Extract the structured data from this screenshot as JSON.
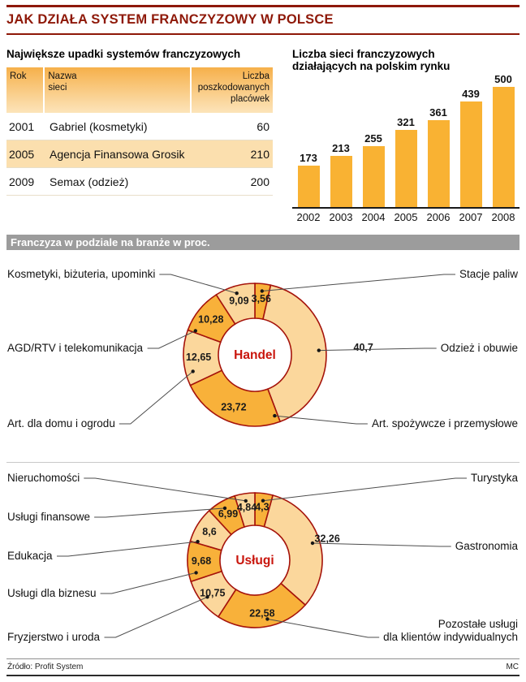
{
  "header": {
    "title": "JAK DZIAŁA SYSTEM FRANCZYZOWY W POLSCE"
  },
  "colors": {
    "accent": "#8e1808",
    "bar": "#f9b233",
    "donut_dark": "#f8b13a",
    "donut_light": "#fbd79c",
    "donut_stroke": "#a5130b",
    "highlight_row": "#fbdfae",
    "center_label": "#c9150c",
    "band_bg": "#9c9c9c"
  },
  "failures_table": {
    "title": "Największe upadki systemów franczyzowych",
    "columns": [
      "Rok",
      "Nazwa sieci",
      "Liczba poszkodowanych placówek"
    ],
    "rows": [
      {
        "rok": "2001",
        "nazwa": "Gabriel (kosmetyki)",
        "liczba": "60"
      },
      {
        "rok": "2005",
        "nazwa": "Agencja Finansowa Grosik",
        "liczba": "210"
      },
      {
        "rok": "2009",
        "nazwa": "Semax (odzież)",
        "liczba": "200"
      }
    ]
  },
  "section_bar": {
    "title": "Franczyza w podziale na branże w proc."
  },
  "footer": {
    "source": "Źródło: Profit System",
    "credit": "MC"
  },
  "chart_data": [
    {
      "type": "bar",
      "title": "Liczba sieci franczyzowych działających na polskim rynku",
      "categories": [
        "2002",
        "2003",
        "2004",
        "2005",
        "2006",
        "2007",
        "2008"
      ],
      "values": [
        173,
        213,
        255,
        321,
        361,
        439,
        500
      ],
      "ylim": [
        0,
        500
      ],
      "grid": false,
      "legend": "none"
    },
    {
      "type": "pie",
      "variant": "donut",
      "center_label": "Handel",
      "segments": [
        {
          "label": "Stacje paliw",
          "value": 3.56,
          "value_label": "3,56",
          "side": "right",
          "label_y": 34
        },
        {
          "label": "Odzież i obuwie",
          "value": 40.7,
          "value_label": "40,7",
          "side": "right",
          "label_y": 125,
          "value_r": 134
        },
        {
          "label": "Art. spożywcze i przemysłowe",
          "value": 23.72,
          "value_label": "23,72",
          "side": "right",
          "label_y": 218,
          "dot_angle": 162
        },
        {
          "label": "Art. dla domu i ogrodu",
          "value": 12.65,
          "value_label": "12,65",
          "side": "left",
          "label_y": 218,
          "dot_angle": 255
        },
        {
          "label": "AGD/RTV i telekomunikacja",
          "value": 10.28,
          "value_label": "10,28",
          "side": "left",
          "label_y": 125,
          "dot_angle": 292
        },
        {
          "label": "Kosmetyki, biżuteria, upominki",
          "value": 9.09,
          "value_label": "9,09",
          "side": "left",
          "label_y": 34
        }
      ]
    },
    {
      "type": "pie",
      "variant": "donut",
      "center_label": "Usługi",
      "segments": [
        {
          "label": "Turystyka",
          "value": 4.3,
          "value_label": "4,3",
          "side": "right",
          "label_y": 22
        },
        {
          "label": "Gastronomia",
          "value": 32.26,
          "value_label": "32,26",
          "side": "right",
          "label_y": 106,
          "value_r": 93
        },
        {
          "label": "Pozostałe usługi",
          "label2": "dla klientów indywidualnych",
          "value": 22.58,
          "value_label": "22,58",
          "side": "right",
          "label_y": 202,
          "dot_angle": 168
        },
        {
          "label": "Fryzjerstwo i uroda",
          "value": 10.75,
          "value_label": "10,75",
          "side": "left",
          "label_y": 218
        },
        {
          "label": "Usługi dla biznesu",
          "value": 9.68,
          "value_label": "9,68",
          "side": "left",
          "label_y": 164,
          "dot_angle": 258
        },
        {
          "label": "Edukacja",
          "value": 8.6,
          "value_label": "8,6",
          "side": "left",
          "label_y": 118,
          "dot_angle": 288
        },
        {
          "label": "Usługi finansowe",
          "value": 6.99,
          "value_label": "6,99",
          "side": "left",
          "label_y": 70
        },
        {
          "label": "Nieruchomości",
          "value": 4.84,
          "value_label": "4,84",
          "side": "left",
          "label_y": 22
        }
      ]
    }
  ]
}
